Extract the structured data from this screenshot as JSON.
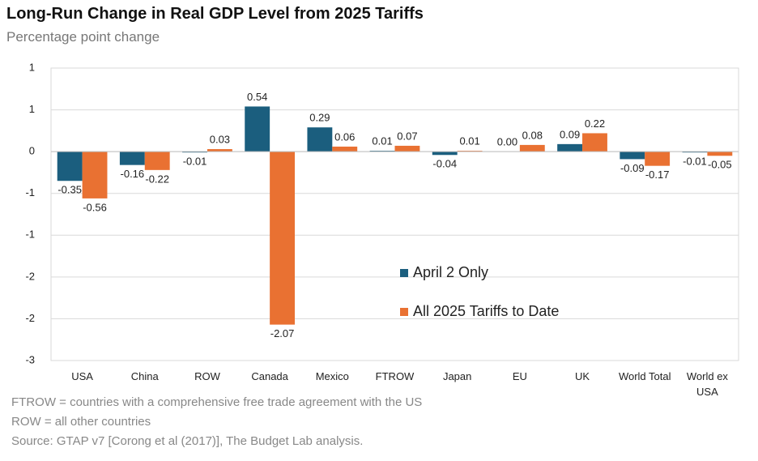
{
  "chart_data": {
    "type": "bar",
    "title": "Long-Run Change in Real GDP Level from 2025 Tariffs",
    "subtitle": "Percentage point change",
    "categories": [
      "USA",
      "China",
      "ROW",
      "Canada",
      "Mexico",
      "FTROW",
      "Japan",
      "EU",
      "UK",
      "World Total",
      "World ex USA"
    ],
    "series": [
      {
        "name": "April 2 Only",
        "color": "#1b5e7e",
        "values": [
          -0.35,
          -0.16,
          -0.01,
          0.54,
          0.29,
          0.01,
          -0.04,
          0,
          0.09,
          -0.09,
          -0.01
        ],
        "value_labels": [
          "-0.35",
          "-0.16",
          "-0.01",
          "0.54",
          "0.29",
          "0.01",
          "-0.04",
          "0.00",
          "0.09",
          "-0.09",
          "-0.01"
        ]
      },
      {
        "name": "All 2025 Tariffs to Date",
        "color": "#e97132",
        "values": [
          -0.56,
          -0.22,
          0.03,
          -2.07,
          0.06,
          0.07,
          0.01,
          0.08,
          0.22,
          -0.17,
          -0.05
        ],
        "value_labels": [
          "-0.56",
          "-0.22",
          "0.03",
          "-2.07",
          "0.06",
          "0.07",
          "0.01",
          "0.08",
          "0.22",
          "-0.17",
          "-0.05"
        ]
      }
    ],
    "ylim": [
      -2.5,
      1.0
    ],
    "yticks": [
      {
        "value": 1.0,
        "label": "1"
      },
      {
        "value": 0.5,
        "label": "1"
      },
      0,
      {
        "value": -0.5,
        "label": "-1"
      },
      {
        "value": -1.0,
        "label": "-1"
      },
      {
        "value": -1.5,
        "label": "-2"
      },
      {
        "value": -2.0,
        "label": "-2"
      },
      {
        "value": -2.5,
        "label": "-3"
      }
    ],
    "grid": true,
    "notes": [
      "FTROW = countries with a comprehensive free trade agreement with the US",
      "ROW = all other countries",
      "Source: GTAP v7 [Corong et al (2017)], The Budget Lab analysis."
    ]
  }
}
